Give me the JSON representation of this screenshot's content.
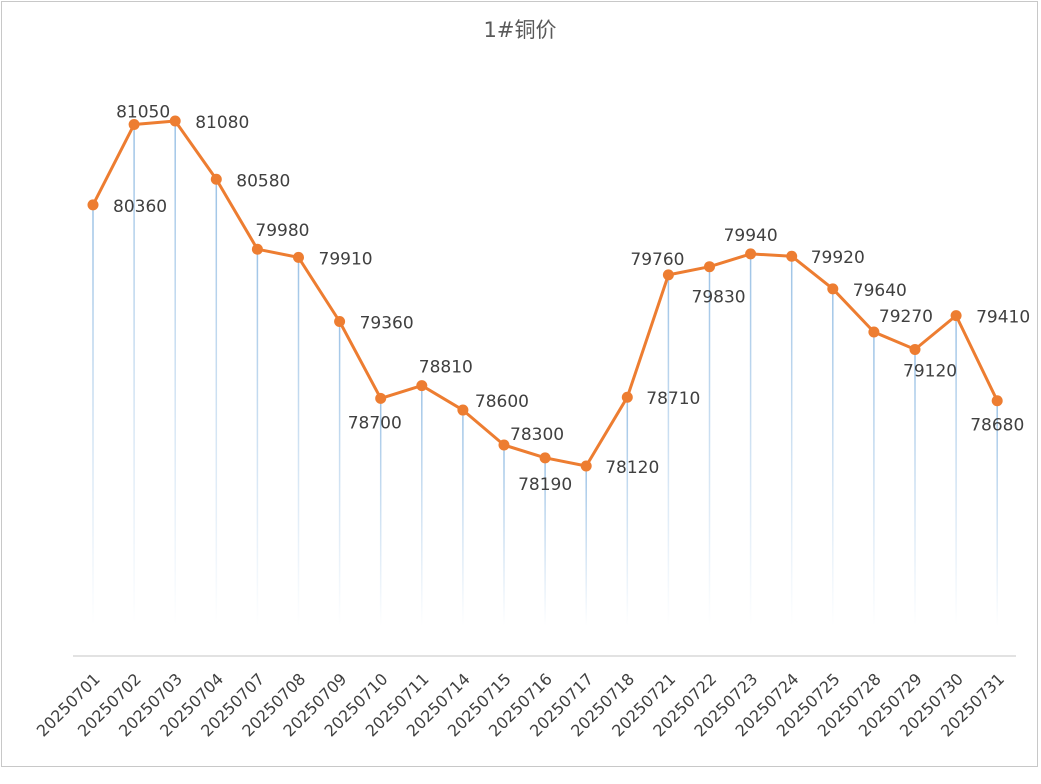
{
  "chart_data": {
    "type": "line",
    "title": "1#铜价",
    "xlabel": "",
    "ylabel": "",
    "categories": [
      "20250701",
      "20250702",
      "20250703",
      "20250704",
      "20250707",
      "20250708",
      "20250709",
      "20250710",
      "20250711",
      "20250714",
      "20250715",
      "20250716",
      "20250717",
      "20250718",
      "20250721",
      "20250722",
      "20250723",
      "20250724",
      "20250725",
      "20250728",
      "20250729",
      "20250730",
      "20250731"
    ],
    "series": [
      {
        "name": "1#铜价",
        "values": [
          80360,
          81050,
          81080,
          80580,
          79980,
          79910,
          79360,
          78700,
          78810,
          78600,
          78300,
          78190,
          78120,
          78710,
          79760,
          79830,
          79940,
          79920,
          79640,
          79270,
          79120,
          79410,
          78680
        ],
        "color": "#ED7D31"
      }
    ],
    "drop_line_color": "#9DC3E6",
    "axis_line_color": "#D9D9D9",
    "grid": false,
    "legend": "none"
  }
}
